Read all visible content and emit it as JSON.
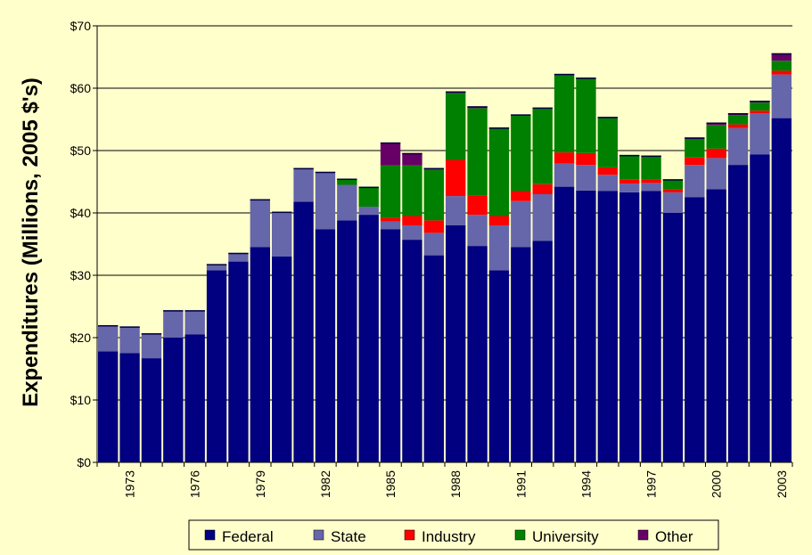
{
  "chart_data": {
    "type": "bar",
    "stacked": true,
    "ylabel": "Expenditures (Millions, 2005 $'s)",
    "ylim": [
      0,
      70
    ],
    "yticks": [
      0,
      10,
      20,
      30,
      40,
      50,
      60,
      70
    ],
    "ytick_labels": [
      "$0",
      "$10",
      "$20",
      "$30",
      "$40",
      "$50",
      "$60",
      "$70"
    ],
    "grid": "horizontal",
    "legend_placement": "bottom",
    "plot_background": "#ffffcc",
    "categories": [
      1972,
      1973,
      1974,
      1975,
      1976,
      1977,
      1978,
      1979,
      1980,
      1981,
      1982,
      1983,
      1984,
      1985,
      1986,
      1987,
      1988,
      1989,
      1990,
      1991,
      1992,
      1993,
      1994,
      1995,
      1996,
      1997,
      1998,
      1999,
      2000,
      2001,
      2002,
      2003
    ],
    "xtick_labels": [
      "1973",
      "1976",
      "1979",
      "1982",
      "1985",
      "1988",
      "1991",
      "1994",
      "1997",
      "2000",
      "2003"
    ],
    "xtick_years": [
      1973,
      1976,
      1979,
      1982,
      1985,
      1988,
      1991,
      1994,
      1997,
      2000,
      2003
    ],
    "series": [
      {
        "name": "Federal",
        "color": "#000080",
        "values": [
          17.8,
          17.5,
          16.7,
          20.0,
          20.5,
          30.8,
          32.2,
          34.5,
          33.0,
          41.8,
          37.4,
          38.8,
          39.7,
          37.4,
          35.7,
          33.2,
          38.0,
          34.7,
          30.8,
          34.5,
          35.5,
          44.2,
          43.6,
          43.5,
          43.3,
          43.5,
          40.0,
          42.5,
          43.8,
          47.7,
          49.4,
          55.2
        ]
      },
      {
        "name": "State",
        "color": "#6666aa",
        "values": [
          4.2,
          4.3,
          4.0,
          4.4,
          3.9,
          1.0,
          1.4,
          7.7,
          7.2,
          5.4,
          9.2,
          5.7,
          1.3,
          1.2,
          2.3,
          3.6,
          4.7,
          5.0,
          7.2,
          7.4,
          7.5,
          3.7,
          4.1,
          2.6,
          1.4,
          1.3,
          3.3,
          5.2,
          5.0,
          5.9,
          6.6,
          7.0
        ]
      },
      {
        "name": "Industry",
        "color": "#ff0000",
        "values": [
          0,
          0,
          0,
          0,
          0,
          0,
          0,
          0,
          0,
          0,
          0,
          0,
          0,
          0.6,
          1.5,
          2.0,
          5.8,
          3.1,
          1.5,
          1.6,
          1.6,
          1.8,
          1.9,
          1.2,
          0.7,
          0.5,
          0.5,
          1.2,
          1.5,
          0.6,
          0.4,
          0.6
        ]
      },
      {
        "name": "University",
        "color": "#008000",
        "values": [
          0,
          0,
          0,
          0,
          0,
          0,
          0,
          0,
          0,
          0,
          0,
          1.0,
          3.2,
          8.4,
          8.1,
          8.1,
          10.7,
          14.0,
          14.0,
          12.1,
          12.1,
          12.4,
          11.9,
          7.9,
          3.9,
          3.9,
          1.6,
          2.9,
          3.8,
          1.5,
          1.3,
          1.6
        ]
      },
      {
        "name": "Other",
        "color": "#660066",
        "values": [
          0,
          0,
          0,
          0,
          0,
          0,
          0,
          0,
          0,
          0,
          0,
          0,
          0,
          3.7,
          2.0,
          0.3,
          0.3,
          0.3,
          0.2,
          0.2,
          0.2,
          0.2,
          0.2,
          0.2,
          0,
          0,
          0,
          0.3,
          0.4,
          0.3,
          0.3,
          1.2
        ]
      }
    ]
  }
}
